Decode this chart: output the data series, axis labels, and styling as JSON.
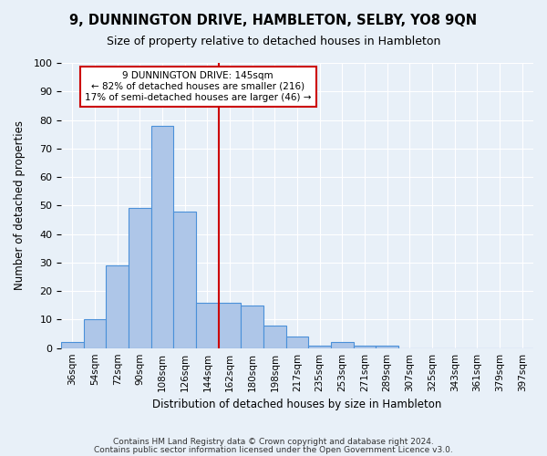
{
  "title": "9, DUNNINGTON DRIVE, HAMBLETON, SELBY, YO8 9QN",
  "subtitle": "Size of property relative to detached houses in Hambleton",
  "xlabel": "Distribution of detached houses by size in Hambleton",
  "ylabel": "Number of detached properties",
  "bar_labels": [
    "36sqm",
    "54sqm",
    "72sqm",
    "90sqm",
    "108sqm",
    "126sqm",
    "144sqm",
    "162sqm",
    "180sqm",
    "198sqm",
    "217sqm",
    "235sqm",
    "253sqm",
    "271sqm",
    "289sqm",
    "307sqm",
    "325sqm",
    "343sqm",
    "361sqm",
    "379sqm",
    "397sqm"
  ],
  "bar_values": [
    2,
    10,
    29,
    49,
    78,
    48,
    16,
    16,
    15,
    8,
    4,
    1,
    2,
    1,
    1,
    0,
    0,
    0,
    0,
    0,
    0
  ],
  "bar_color": "#aec6e8",
  "bar_edge_color": "#4a90d9",
  "background_color": "#e8f0f8",
  "grid_color": "#ffffff",
  "vline_color": "#cc0000",
  "vline_index": 6.5,
  "annotation_title": "9 DUNNINGTON DRIVE: 145sqm",
  "annotation_line1": "← 82% of detached houses are smaller (216)",
  "annotation_line2": "17% of semi-detached houses are larger (46) →",
  "annotation_box_color": "#ffffff",
  "annotation_box_edge": "#cc0000",
  "ylim": [
    0,
    100
  ],
  "yticks": [
    0,
    10,
    20,
    30,
    40,
    50,
    60,
    70,
    80,
    90,
    100
  ],
  "footer1": "Contains HM Land Registry data © Crown copyright and database right 2024.",
  "footer2": "Contains public sector information licensed under the Open Government Licence v3.0."
}
